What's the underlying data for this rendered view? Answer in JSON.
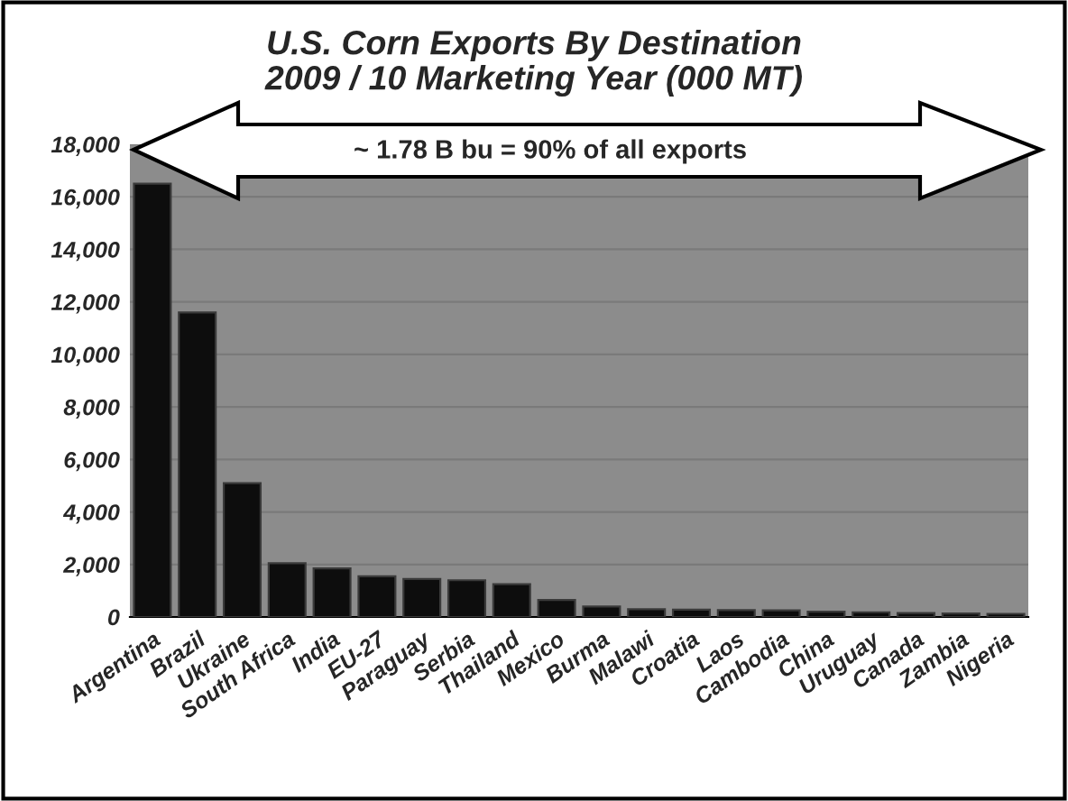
{
  "chart_data": {
    "type": "bar",
    "title": "U.S. Corn Exports By Destination\n2009 / 10 Marketing Year (000 MT)",
    "categories": [
      "Argentina",
      "Brazil",
      "Ukraine",
      "South Africa",
      "India",
      "EU-27",
      "Paraguay",
      "Serbia",
      "Thailand",
      "Mexico",
      "Burma",
      "Malawi",
      "Croatia",
      "Laos",
      "Cambodia",
      "China",
      "Uruguay",
      "Canada",
      "Zambia",
      "Nigeria"
    ],
    "values": [
      16500,
      11600,
      5100,
      2050,
      1850,
      1550,
      1450,
      1400,
      1250,
      650,
      400,
      300,
      280,
      260,
      250,
      200,
      180,
      150,
      130,
      120
    ],
    "color": "#0d0d0d",
    "ylim": [
      0,
      18000
    ],
    "yticks": [
      {
        "value": 0,
        "label": "0"
      },
      {
        "value": 2000,
        "label": "2,000"
      },
      {
        "value": 4000,
        "label": "4,000"
      },
      {
        "value": 6000,
        "label": "6,000"
      },
      {
        "value": 8000,
        "label": "8,000"
      },
      {
        "value": 10000,
        "label": "10,000"
      },
      {
        "value": 12000,
        "label": "12,000"
      },
      {
        "value": 14000,
        "label": "14,000"
      },
      {
        "value": 16000,
        "label": "16,000"
      },
      {
        "value": 18000,
        "label": "18,000"
      }
    ],
    "grid": "y",
    "annotations": [
      "~ 1.78 B bu = 90% of all exports"
    ]
  }
}
